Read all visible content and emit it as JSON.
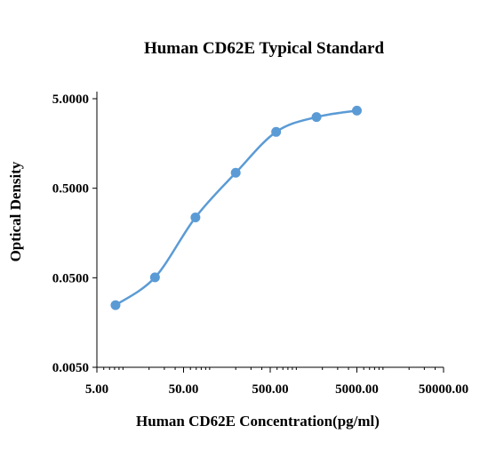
{
  "chart_data": {
    "type": "scatter",
    "title": "Human CD62E Typical Standard",
    "xlabel": "Human CD62E Concentration(pg/ml)",
    "ylabel": "Optical Density",
    "x_scale": "log",
    "y_scale": "log",
    "xlim": [
      5,
      50000
    ],
    "ylim": [
      0.005,
      5
    ],
    "x_ticks": [
      "5.00",
      "50.00",
      "500.00",
      "5000.00",
      "50000.00"
    ],
    "y_ticks": [
      "0.0050",
      "0.0500",
      "0.5000",
      "5.0000"
    ],
    "grid": false,
    "legend": "none",
    "series": [
      {
        "x": [
          8.2,
          23.4,
          68.6,
          200,
          585,
          1710,
          5000
        ],
        "y": [
          0.0247,
          0.0505,
          0.236,
          0.744,
          2.13,
          3.12,
          3.68
        ],
        "color": "#5B9BD5",
        "marker": "circle",
        "smooth_line": true
      }
    ]
  }
}
